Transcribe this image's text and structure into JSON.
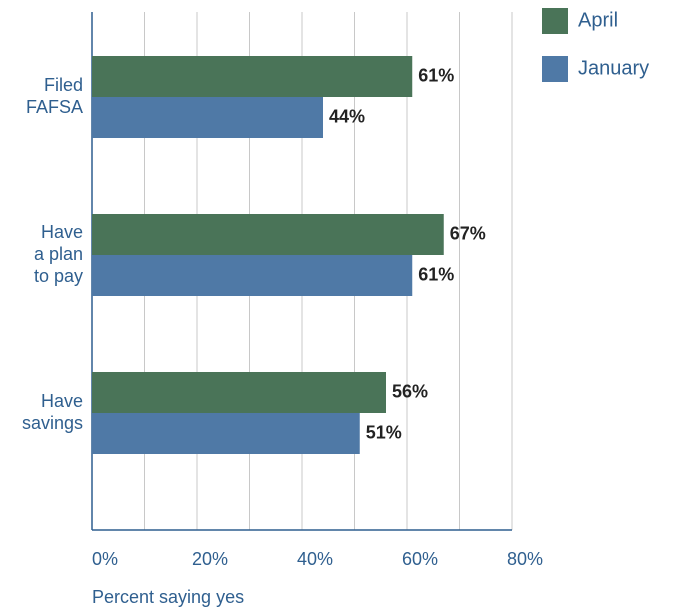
{
  "chart_data": {
    "type": "hbar",
    "categories": [
      [
        "Filed",
        "FAFSA"
      ],
      [
        "Have",
        "a plan",
        "to pay"
      ],
      [
        "Have",
        "savings"
      ]
    ],
    "series": [
      {
        "name": "April",
        "color": "#4a7458",
        "values": [
          61,
          67,
          56
        ],
        "value_labels": [
          "61%",
          "67%",
          "56%"
        ]
      },
      {
        "name": "January",
        "color": "#4f79a6",
        "values": [
          44,
          61,
          51
        ],
        "value_labels": [
          "44%",
          "61%",
          "51%"
        ]
      }
    ],
    "xlim": [
      0,
      80
    ],
    "xticks": [
      {
        "value": 0,
        "label": "0%"
      },
      {
        "value": 20,
        "label": "20%"
      },
      {
        "value": 40,
        "label": "40%"
      },
      {
        "value": 60,
        "label": "60%"
      },
      {
        "value": 80,
        "label": "80%"
      }
    ],
    "xminor_ticks": [
      10,
      30,
      50,
      70
    ],
    "xlabel": "Percent saying yes",
    "grid": true,
    "legend": "top-right"
  }
}
